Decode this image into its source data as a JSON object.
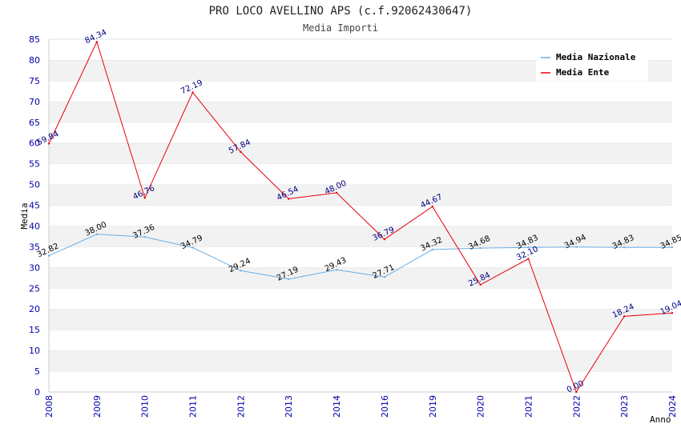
{
  "chart_data": {
    "type": "line",
    "title": "PRO LOCO AVELLINO APS (c.f.92062430647)",
    "subtitle": "Media Importi",
    "xlabel": "Anno",
    "ylabel": "Media",
    "ylim": [
      0,
      85
    ],
    "yticks": [
      "0",
      "5",
      "10",
      "15",
      "20",
      "25",
      "30",
      "35",
      "40",
      "45",
      "50",
      "55",
      "60",
      "65",
      "70",
      "75",
      "80",
      "85"
    ],
    "categories": [
      "2008",
      "2009",
      "2010",
      "2011",
      "2012",
      "2013",
      "2014",
      "2016",
      "2019",
      "2020",
      "2021",
      "2022",
      "2023",
      "2024"
    ],
    "series": [
      {
        "name": "Media Nazionale",
        "color": "#6aaee6",
        "values": [
          32.82,
          38.0,
          37.36,
          34.79,
          29.24,
          27.19,
          29.43,
          27.71,
          34.32,
          34.68,
          34.83,
          34.94,
          34.83,
          34.85
        ],
        "labels": [
          "32.82",
          "38.00",
          "37.36",
          "34.79",
          "29.24",
          "27.19",
          "29.43",
          "27.71",
          "34.32",
          "34.68",
          "34.83",
          "34.94",
          "34.83",
          "34.85"
        ]
      },
      {
        "name": "Media Ente",
        "color": "#e8000b",
        "values": [
          59.84,
          84.34,
          46.76,
          72.19,
          57.84,
          46.54,
          48.0,
          36.79,
          44.67,
          25.84,
          32.1,
          0.0,
          18.24,
          19.04
        ],
        "labels": [
          "59.84",
          "84.34",
          "46.76",
          "72.19",
          "57.84",
          "46.54",
          "48.00",
          "36.79",
          "44.67",
          "25.84",
          "32.10",
          "0.00",
          "18.24",
          "19.04"
        ]
      }
    ],
    "legend": {
      "position": "top-right"
    },
    "grid": true
  }
}
